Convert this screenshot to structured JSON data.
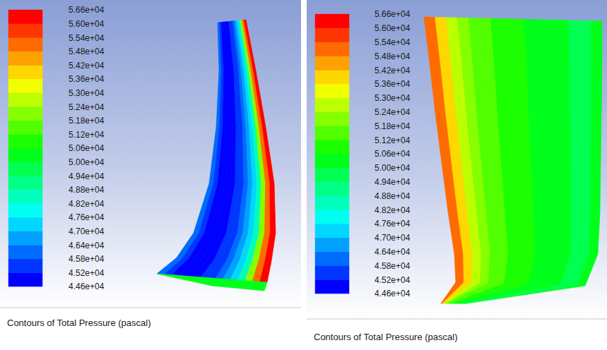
{
  "chart_data": [
    {
      "type": "contour",
      "title": "Contours of Total Pressure (pascal)",
      "colorbar": {
        "range": [
          44600,
          56600
        ],
        "ticks": [
          {
            "value": 44600,
            "label": "4.46e+04"
          },
          {
            "value": 45200,
            "label": "4.52e+04"
          },
          {
            "value": 45800,
            "label": "4.58e+04"
          },
          {
            "value": 46400,
            "label": "4.64e+04"
          },
          {
            "value": 47000,
            "label": "4.70e+04"
          },
          {
            "value": 47600,
            "label": "4.76e+04"
          },
          {
            "value": 48200,
            "label": "4.82e+04"
          },
          {
            "value": 48800,
            "label": "4.88e+04"
          },
          {
            "value": 49400,
            "label": "4.94e+04"
          },
          {
            "value": 50000,
            "label": "5.00e+04"
          },
          {
            "value": 50600,
            "label": "5.06e+04"
          },
          {
            "value": 51200,
            "label": "5.12e+04"
          },
          {
            "value": 51800,
            "label": "5.18e+04"
          },
          {
            "value": 52400,
            "label": "5.24e+04"
          },
          {
            "value": 53000,
            "label": "5.30e+04"
          },
          {
            "value": 53600,
            "label": "5.36e+04"
          },
          {
            "value": 54200,
            "label": "5.42e+04"
          },
          {
            "value": 54800,
            "label": "5.48e+04"
          },
          {
            "value": 55400,
            "label": "5.54e+04"
          },
          {
            "value": 56000,
            "label": "5.60e+04"
          },
          {
            "value": 56600,
            "label": "5.66e+04"
          }
        ],
        "colors": [
          "#0000ff",
          "#0036ff",
          "#006bff",
          "#00a1ff",
          "#00d7ff",
          "#00fff2",
          "#00ffbc",
          "#00ff86",
          "#00ff51",
          "#00ff1b",
          "#1bff00",
          "#51ff00",
          "#86ff00",
          "#bcff00",
          "#f2ff00",
          "#ffd700",
          "#ffa100",
          "#ff6b00",
          "#ff3600",
          "#ff0000"
        ]
      },
      "strips": [
        45900,
        45300,
        45000,
        44800,
        44700,
        44900,
        45200,
        45600,
        46000,
        46500,
        47300,
        48500,
        51800,
        55000,
        56200
      ],
      "hub_values": [
        50200
      ]
    },
    {
      "type": "contour",
      "title": "Contours of Total Pressure (pascal)",
      "colorbar": {
        "range": [
          44600,
          56600
        ],
        "ticks": [
          {
            "value": 44600,
            "label": "4.46e+04"
          },
          {
            "value": 45200,
            "label": "4.52e+04"
          },
          {
            "value": 45800,
            "label": "4.58e+04"
          },
          {
            "value": 46400,
            "label": "4.64e+04"
          },
          {
            "value": 47000,
            "label": "4.70e+04"
          },
          {
            "value": 47600,
            "label": "4.76e+04"
          },
          {
            "value": 48200,
            "label": "4.82e+04"
          },
          {
            "value": 48800,
            "label": "4.88e+04"
          },
          {
            "value": 49400,
            "label": "4.94e+04"
          },
          {
            "value": 50000,
            "label": "5.00e+04"
          },
          {
            "value": 50600,
            "label": "5.06e+04"
          },
          {
            "value": 51200,
            "label": "5.12e+04"
          },
          {
            "value": 51800,
            "label": "5.18e+04"
          },
          {
            "value": 52400,
            "label": "5.24e+04"
          },
          {
            "value": 53000,
            "label": "5.30e+04"
          },
          {
            "value": 53600,
            "label": "5.36e+04"
          },
          {
            "value": 54200,
            "label": "5.42e+04"
          },
          {
            "value": 54800,
            "label": "5.48e+04"
          },
          {
            "value": 55400,
            "label": "5.54e+04"
          },
          {
            "value": 56000,
            "label": "5.60e+04"
          },
          {
            "value": 56600,
            "label": "5.66e+04"
          }
        ],
        "colors": [
          "#0000ff",
          "#0036ff",
          "#006bff",
          "#00a1ff",
          "#00d7ff",
          "#00fff2",
          "#00ffbc",
          "#00ff86",
          "#00ff51",
          "#00ff1b",
          "#1bff00",
          "#51ff00",
          "#86ff00",
          "#bcff00",
          "#f2ff00",
          "#ffd700",
          "#ffa100",
          "#ff6b00",
          "#ff3600",
          "#ff0000"
        ]
      },
      "strips": [
        55200,
        53800,
        52800,
        52000,
        51500,
        51200,
        51000,
        50800,
        50600,
        50500,
        50300,
        50100,
        50000,
        49800,
        49700,
        50100
      ]
    }
  ]
}
